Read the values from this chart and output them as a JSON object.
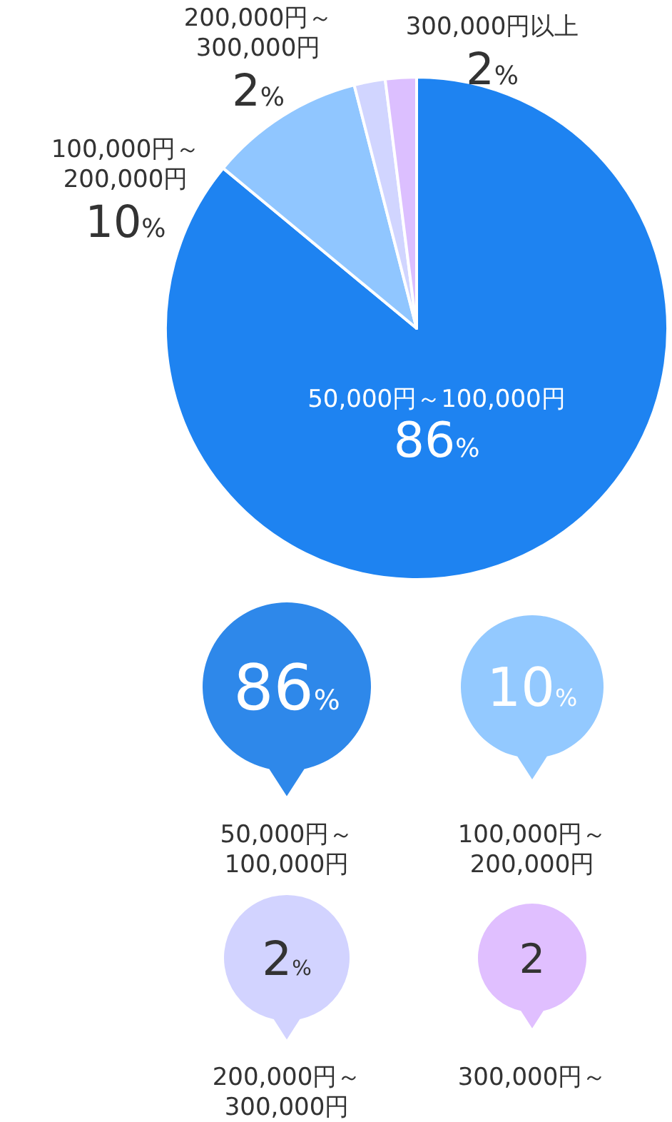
{
  "chart_data": [
    {
      "type": "pie",
      "categories": [
        "50,000円～100,000円",
        "100,000円～200,000円",
        "200,000円～300,000円",
        "300,000円以上"
      ],
      "values": [
        86,
        10,
        2,
        2
      ],
      "colors": [
        "#1e83f1",
        "#90c6ff",
        "#d1d5ff",
        "#dcbfff"
      ],
      "value_labels": [
        "86%",
        "10%",
        "2%",
        "2%"
      ]
    },
    {
      "type": "other",
      "categories": [
        "50,000円～100,000円",
        "100,000円～200,000円",
        "200,000円～300,000円",
        "300,000円～"
      ],
      "value_labels": [
        "86%",
        "10%",
        "2%",
        "2"
      ],
      "colors": [
        "#2e88ea",
        "#93c9ff",
        "#d2d3ff",
        "#e0bfff"
      ]
    }
  ]
}
